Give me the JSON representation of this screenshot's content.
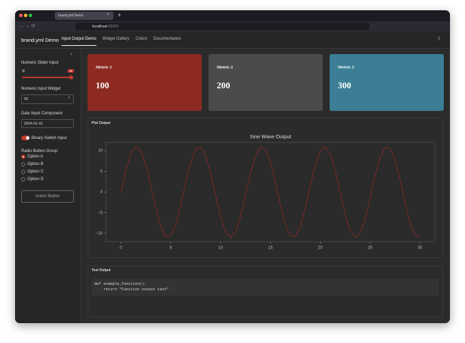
{
  "browser": {
    "tab_title": "brand.yml Demo",
    "url_host": "localhost",
    "url_port": ":53231"
  },
  "navbar": {
    "brand": "brand.yml Demo",
    "tabs": [
      "Input Output Demo",
      "Widget Gallery",
      "Colors",
      "Documentation"
    ],
    "active_tab": 0
  },
  "sidebar": {
    "slider": {
      "label": "Numeric Slider Input",
      "min": 0,
      "value": 11
    },
    "numeric_input": {
      "label": "Numeric Input Widget",
      "value": 30
    },
    "date_input": {
      "label": "Date Input Component",
      "value": "2024-01-01"
    },
    "switch": {
      "label": "Binary Switch Input",
      "on": true
    },
    "radio": {
      "label": "Radio Button Group",
      "options": [
        "Option A",
        "Option B",
        "Option C",
        "Option D"
      ],
      "selected": 0
    },
    "button": "Action Button"
  },
  "metrics": [
    {
      "label": "Metric 1",
      "value": 100,
      "color": "#8c2a22"
    },
    {
      "label": "Metric 2",
      "value": 200,
      "color": "#4b4b4e"
    },
    {
      "label": "Metric 3",
      "value": 300,
      "color": "#3b7e95"
    }
  ],
  "plot_card": {
    "header": "Plot Output"
  },
  "chart_data": {
    "type": "line",
    "title": "Sine Wave Output",
    "x": [
      0,
      0.5,
      1,
      1.5,
      2,
      2.5,
      3,
      3.5,
      4,
      4.5,
      5,
      5.5,
      6,
      6.5,
      7,
      7.5,
      8,
      8.5,
      9,
      9.5,
      10,
      10.5,
      11,
      11.5,
      12,
      12.5,
      13,
      13.5,
      14,
      14.5,
      15,
      15.5,
      16,
      16.5,
      17,
      17.5,
      18,
      18.5,
      19,
      19.5,
      20,
      20.5,
      21,
      21.5,
      22,
      22.5,
      23,
      23.5,
      24,
      24.5,
      25,
      25.5,
      26,
      26.5,
      27,
      27.5,
      28,
      28.5,
      29,
      29.5,
      30
    ],
    "series": [
      {
        "color": "#7c2a22",
        "values": [
          0,
          5.3,
          9.3,
          11.0,
          10.0,
          6.6,
          1.6,
          -3.9,
          -8.3,
          -10.8,
          -10.5,
          -7.8,
          -3.1,
          2.4,
          7.2,
          10.3,
          10.9,
          8.8,
          4.5,
          -0.8,
          -6.0,
          -9.7,
          -11.0,
          -9.6,
          -5.9,
          -0.7,
          4.6,
          8.8,
          10.9,
          10.3,
          7.2,
          2.3,
          -3.2,
          -7.8,
          -10.6,
          -10.7,
          -8.3,
          -3.8,
          1.6,
          6.6,
          10.0,
          11.0,
          9.2,
          5.2,
          -0.1,
          -5.4,
          -9.3,
          -11.0,
          -10.0,
          -6.5,
          -1.5,
          3.9,
          8.4,
          10.8,
          10.5,
          7.7,
          3.0,
          -2.5,
          -7.3,
          -10.4,
          -10.9
        ]
      }
    ],
    "xlim": [
      -1.5,
      31.5
    ],
    "xticks": [
      0,
      5,
      10,
      15,
      20,
      25,
      30
    ],
    "ylim": [
      -12,
      12
    ],
    "yticks": [
      {
        "value": -10,
        "label": "−10"
      },
      {
        "value": -5,
        "label": "−5"
      },
      0,
      5,
      10
    ]
  },
  "text_card": {
    "header": "Text Output",
    "code": [
      "def example_function():",
      "    return \"Function output text\""
    ]
  }
}
